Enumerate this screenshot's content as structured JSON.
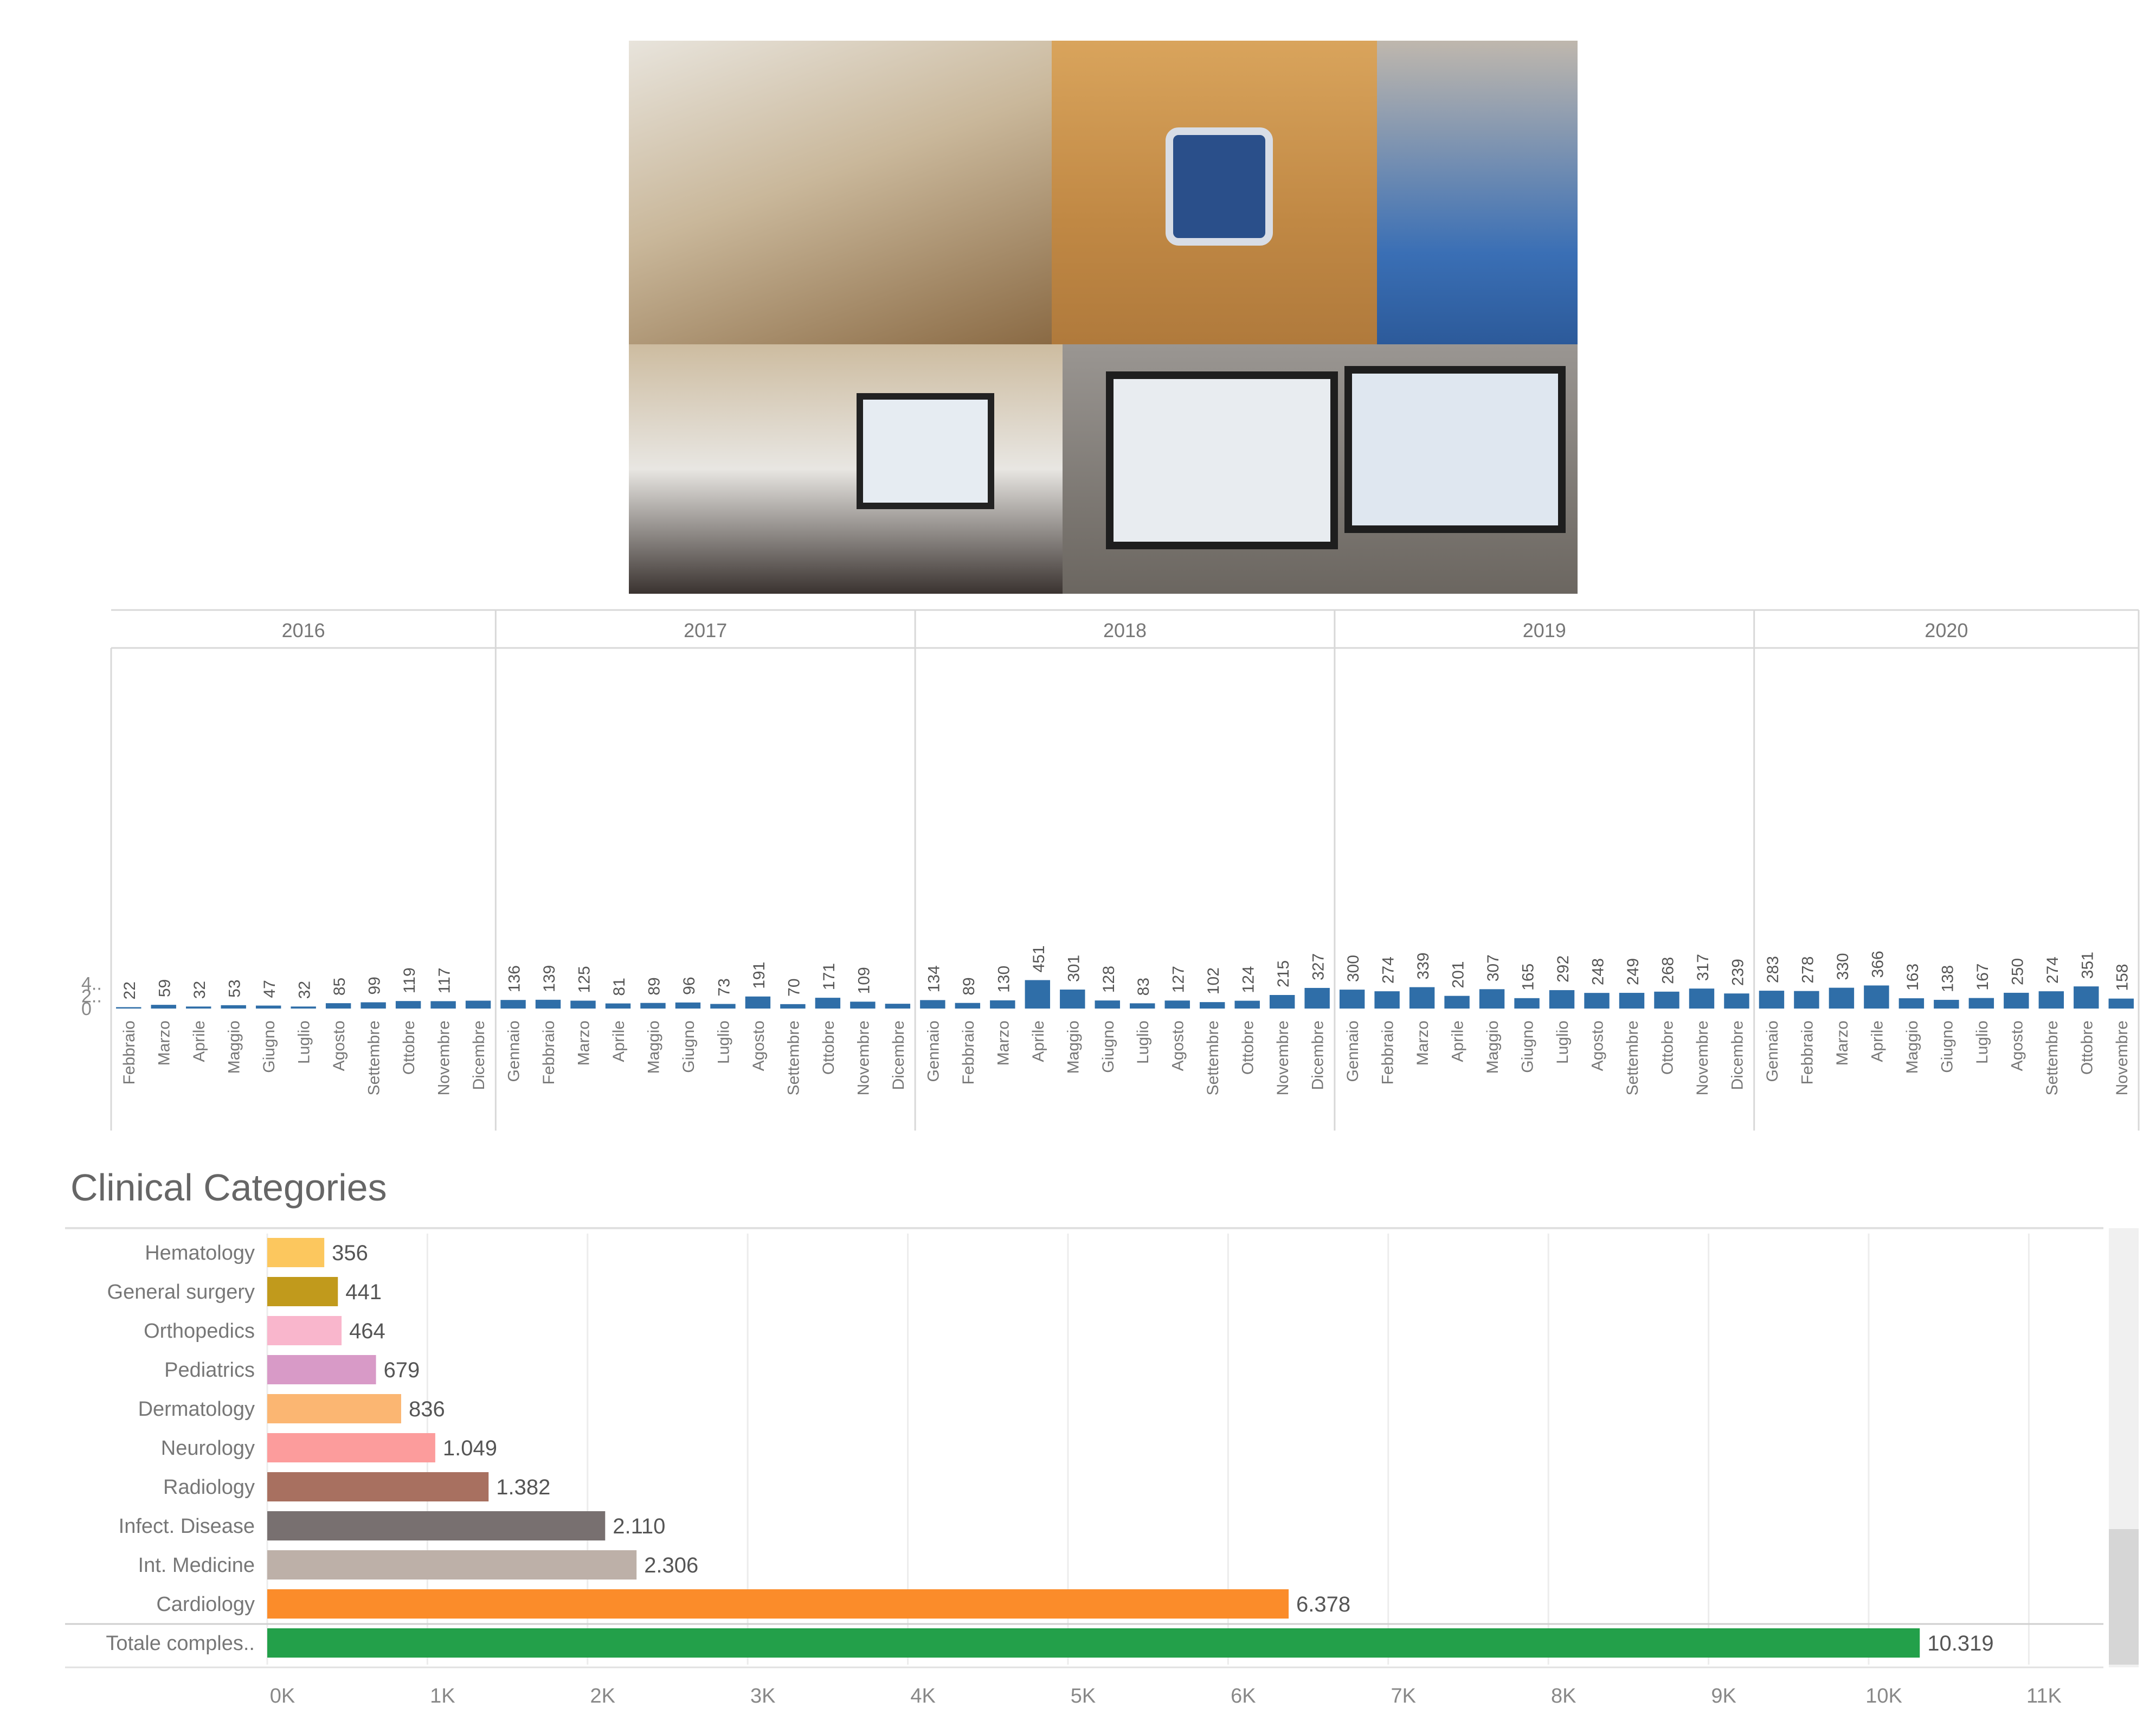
{
  "chart_data": [
    {
      "type": "bar",
      "title": "",
      "xlabel": "",
      "ylabel": "",
      "y_tick_labels": [
        "0",
        "2..",
        "4.."
      ],
      "ylim": [
        0,
        500
      ],
      "bar_color": "#2f6ea8",
      "groups": [
        {
          "year": "2016",
          "months": [
            "Febbraio",
            "Marzo",
            "Aprile",
            "Maggio",
            "Giugno",
            "Luglio",
            "Agosto",
            "Settembre",
            "Ottobre",
            "Novembre",
            "Dicembre"
          ],
          "values": [
            22,
            59,
            32,
            53,
            47,
            32,
            85,
            99,
            119,
            117,
            125
          ]
        },
        {
          "year": "2017",
          "months": [
            "Gennaio",
            "Febbraio",
            "Marzo",
            "Aprile",
            "Maggio",
            "Giugno",
            "Luglio",
            "Agosto",
            "Settembre",
            "Ottobre",
            "Novembre",
            "Dicembre"
          ],
          "values": [
            136,
            139,
            125,
            81,
            89,
            96,
            73,
            191,
            70,
            171,
            109,
            76
          ]
        },
        {
          "year": "2018",
          "months": [
            "Gennaio",
            "Febbraio",
            "Marzo",
            "Aprile",
            "Maggio",
            "Giugno",
            "Luglio",
            "Agosto",
            "Settembre",
            "Ottobre",
            "Novembre",
            "Dicembre"
          ],
          "values": [
            134,
            89,
            130,
            451,
            301,
            128,
            83,
            127,
            102,
            124,
            215,
            327
          ]
        },
        {
          "year": "2019",
          "months": [
            "Gennaio",
            "Febbraio",
            "Marzo",
            "Aprile",
            "Maggio",
            "Giugno",
            "Luglio",
            "Agosto",
            "Settembre",
            "Ottobre",
            "Novembre",
            "Dicembre"
          ],
          "values": [
            300,
            274,
            339,
            201,
            307,
            165,
            292,
            248,
            249,
            268,
            317,
            239
          ]
        },
        {
          "year": "2020",
          "months": [
            "Gennaio",
            "Febbraio",
            "Marzo",
            "Aprile",
            "Maggio",
            "Giugno",
            "Luglio",
            "Agosto",
            "Settembre",
            "Ottobre",
            "Novembre"
          ],
          "values": [
            283,
            278,
            330,
            366,
            163,
            138,
            167,
            250,
            274,
            351,
            158
          ]
        }
      ],
      "unlabeled_bar_values": {
        "2016-Dicembre": true,
        "2017-Dicembre": true
      }
    },
    {
      "type": "bar",
      "orientation": "horizontal",
      "title": "Clinical Categories",
      "categories": [
        "Hematology",
        "General surgery",
        "Orthopedics",
        "Pediatrics",
        "Dermatology",
        "Neurology",
        "Radiology",
        "Infect. Disease",
        "Int. Medicine",
        "Cardiology",
        "Totale comples.."
      ],
      "values": [
        356,
        441,
        464,
        679,
        836,
        1049,
        1382,
        2110,
        2306,
        6378,
        10319
      ],
      "value_labels": [
        "356",
        "441",
        "464",
        "679",
        "836",
        "1.049",
        "1.382",
        "2.110",
        "2.306",
        "6.378",
        "10.319"
      ],
      "colors": [
        "#fcc75e",
        "#c19a1c",
        "#f9b6cc",
        "#d89ac7",
        "#fbb672",
        "#fc9c9c",
        "#a87060",
        "#787070",
        "#bdb0a8",
        "#fb8c2a",
        "#23a04a"
      ],
      "x_tick_labels": [
        "0K",
        "1K",
        "2K",
        "3K",
        "4K",
        "5K",
        "6K",
        "7K",
        "8K",
        "9K",
        "10K",
        "11K"
      ],
      "xlim": [
        0,
        11000
      ]
    }
  ]
}
